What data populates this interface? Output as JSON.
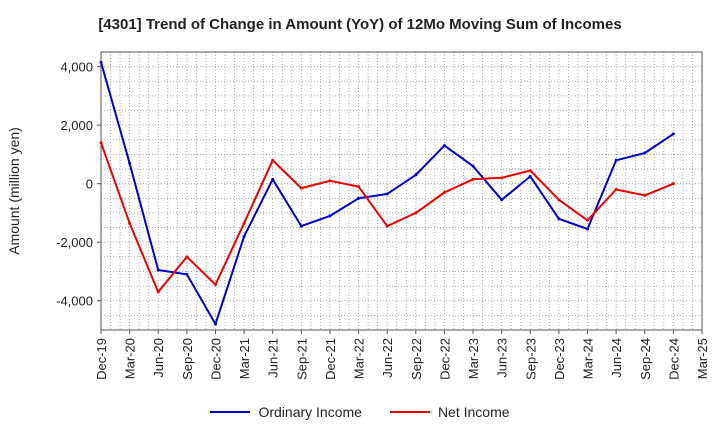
{
  "chart_data": {
    "type": "line",
    "title": "[4301]  Trend of Change in Amount (YoY) of 12Mo Moving Sum of Incomes",
    "xlabel": "",
    "ylabel": "Amount (million yen)",
    "ylim": [
      -5000,
      4500
    ],
    "yticks": [
      -4000,
      -2000,
      0,
      2000,
      4000
    ],
    "ytick_labels": [
      "-4,000",
      "-2,000",
      "0",
      "2,000",
      "4,000"
    ],
    "categories": [
      "Dec-19",
      "Mar-20",
      "Jun-20",
      "Sep-20",
      "Dec-20",
      "Mar-21",
      "Jun-21",
      "Sep-21",
      "Dec-21",
      "Mar-22",
      "Jun-22",
      "Sep-22",
      "Dec-22",
      "Mar-23",
      "Jun-23",
      "Sep-23",
      "Dec-23",
      "Mar-24",
      "Jun-24",
      "Sep-24",
      "Dec-24",
      "Mar-25"
    ],
    "grid": true,
    "series": [
      {
        "name": "Ordinary Income",
        "color": "#0000cc",
        "values": [
          4150,
          700,
          -2950,
          -3100,
          -4800,
          -1800,
          150,
          -1450,
          -1100,
          -500,
          -350,
          300,
          1300,
          600,
          -550,
          250,
          -1200,
          -1550,
          800,
          1050,
          1700,
          null
        ]
      },
      {
        "name": "Net Income",
        "color": "#ee0000",
        "values": [
          1400,
          -1350,
          -3700,
          -2500,
          -3450,
          -1350,
          800,
          -150,
          100,
          -100,
          -1450,
          -1000,
          -300,
          150,
          200,
          450,
          -550,
          -1250,
          -200,
          -400,
          0,
          null
        ]
      }
    ],
    "legend_position": "bottom"
  }
}
